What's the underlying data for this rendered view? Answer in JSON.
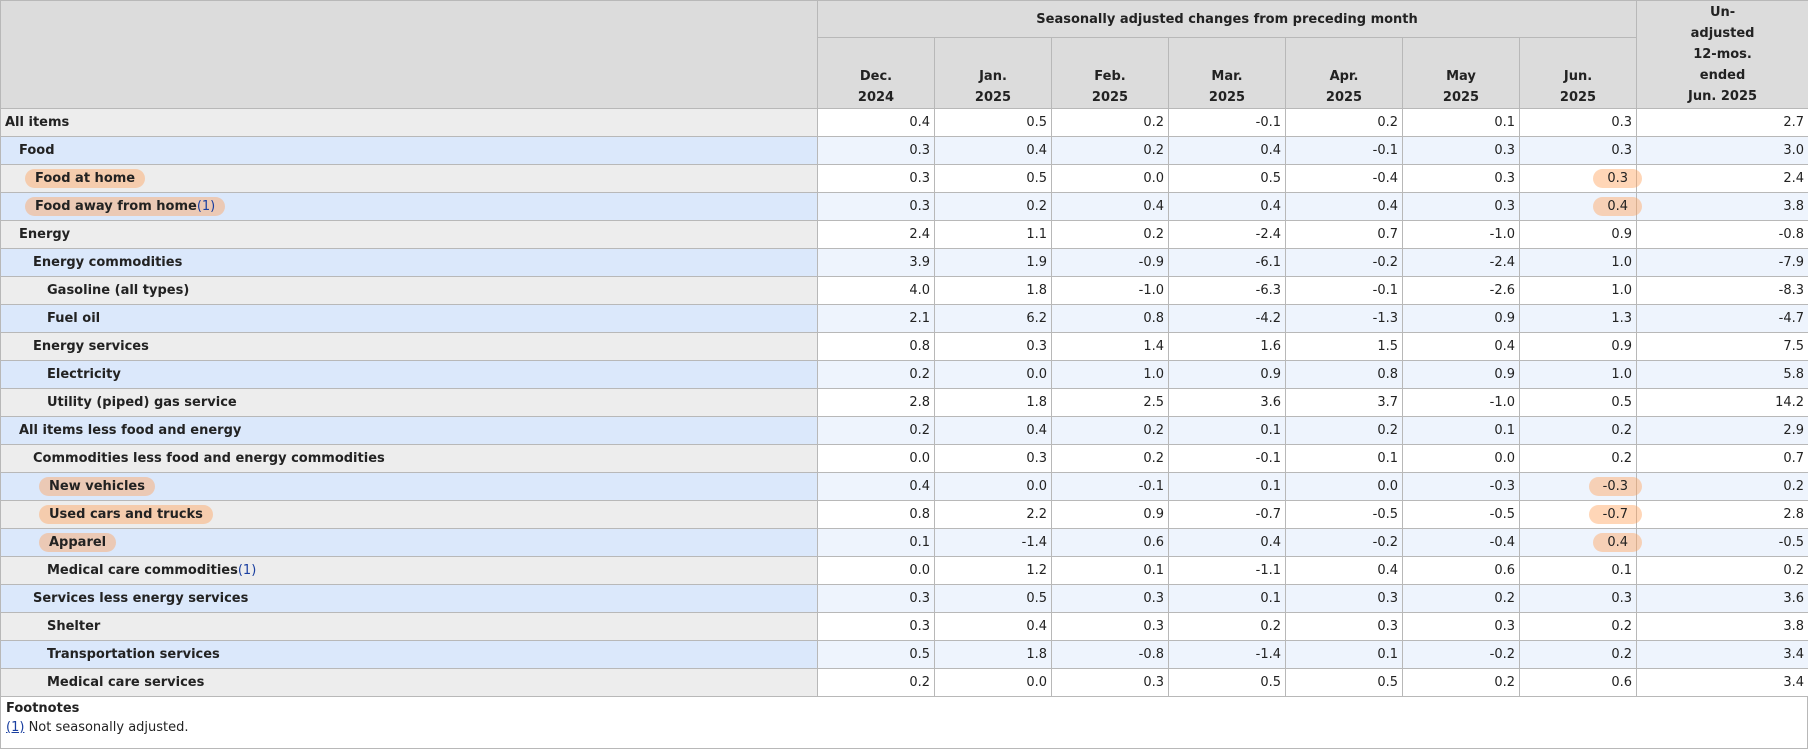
{
  "table": {
    "group_header": "Seasonally adjusted changes from preceding month",
    "columns": [
      [
        "Dec.",
        "2024"
      ],
      [
        "Jan.",
        "2025"
      ],
      [
        "Feb.",
        "2025"
      ],
      [
        "Mar.",
        "2025"
      ],
      [
        "Apr.",
        "2025"
      ],
      [
        "May",
        "2025"
      ],
      [
        "Jun.",
        "2025"
      ]
    ],
    "last_column": [
      "Un-",
      "adjusted",
      "12-mos.",
      "ended",
      "Jun. 2025"
    ],
    "rows": [
      {
        "label": "All items",
        "level": 0,
        "values": [
          "0.4",
          "0.5",
          "0.2",
          "-0.1",
          "0.2",
          "0.1",
          "0.3",
          "2.7"
        ]
      },
      {
        "label": "Food",
        "level": 1,
        "values": [
          "0.3",
          "0.4",
          "0.2",
          "0.4",
          "-0.1",
          "0.3",
          "0.3",
          "3.0"
        ]
      },
      {
        "label": "Food at home",
        "level": 2,
        "values": [
          "0.3",
          "0.5",
          "0.0",
          "0.5",
          "-0.4",
          "0.3",
          "0.3",
          "2.4"
        ]
      },
      {
        "label": "Food away from home",
        "note": "(1)",
        "level": 2,
        "values": [
          "0.3",
          "0.2",
          "0.4",
          "0.4",
          "0.4",
          "0.3",
          "0.4",
          "3.8"
        ]
      },
      {
        "label": "Energy",
        "level": 1,
        "values": [
          "2.4",
          "1.1",
          "0.2",
          "-2.4",
          "0.7",
          "-1.0",
          "0.9",
          "-0.8"
        ]
      },
      {
        "label": "Energy commodities",
        "level": 2,
        "values": [
          "3.9",
          "1.9",
          "-0.9",
          "-6.1",
          "-0.2",
          "-2.4",
          "1.0",
          "-7.9"
        ]
      },
      {
        "label": "Gasoline (all types)",
        "level": 3,
        "values": [
          "4.0",
          "1.8",
          "-1.0",
          "-6.3",
          "-0.1",
          "-2.6",
          "1.0",
          "-8.3"
        ]
      },
      {
        "label": "Fuel oil",
        "level": 3,
        "values": [
          "2.1",
          "6.2",
          "0.8",
          "-4.2",
          "-1.3",
          "0.9",
          "1.3",
          "-4.7"
        ]
      },
      {
        "label": "Energy services",
        "level": 2,
        "values": [
          "0.8",
          "0.3",
          "1.4",
          "1.6",
          "1.5",
          "0.4",
          "0.9",
          "7.5"
        ]
      },
      {
        "label": "Electricity",
        "level": 3,
        "values": [
          "0.2",
          "0.0",
          "1.0",
          "0.9",
          "0.8",
          "0.9",
          "1.0",
          "5.8"
        ]
      },
      {
        "label": "Utility (piped) gas service",
        "level": 3,
        "values": [
          "2.8",
          "1.8",
          "2.5",
          "3.6",
          "3.7",
          "-1.0",
          "0.5",
          "14.2"
        ]
      },
      {
        "label": "All items less food and energy",
        "level": 1,
        "values": [
          "0.2",
          "0.4",
          "0.2",
          "0.1",
          "0.2",
          "0.1",
          "0.2",
          "2.9"
        ]
      },
      {
        "label": "Commodities less food and energy commodities",
        "level": 2,
        "values": [
          "0.0",
          "0.3",
          "0.2",
          "-0.1",
          "0.1",
          "0.0",
          "0.2",
          "0.7"
        ]
      },
      {
        "label": "New vehicles",
        "level": 3,
        "values": [
          "0.4",
          "0.0",
          "-0.1",
          "0.1",
          "0.0",
          "-0.3",
          "-0.3",
          "0.2"
        ]
      },
      {
        "label": "Used cars and trucks",
        "level": 3,
        "values": [
          "0.8",
          "2.2",
          "0.9",
          "-0.7",
          "-0.5",
          "-0.5",
          "-0.7",
          "2.8"
        ]
      },
      {
        "label": "Apparel",
        "level": 3,
        "values": [
          "0.1",
          "-1.4",
          "0.6",
          "0.4",
          "-0.2",
          "-0.4",
          "0.4",
          "-0.5"
        ]
      },
      {
        "label": "Medical care commodities",
        "note": "(1)",
        "level": 3,
        "values": [
          "0.0",
          "1.2",
          "0.1",
          "-1.1",
          "0.4",
          "0.6",
          "0.1",
          "0.2"
        ]
      },
      {
        "label": "Services less energy services",
        "level": 2,
        "values": [
          "0.3",
          "0.5",
          "0.3",
          "0.1",
          "0.3",
          "0.2",
          "0.3",
          "3.6"
        ]
      },
      {
        "label": "Shelter",
        "level": 3,
        "values": [
          "0.3",
          "0.4",
          "0.3",
          "0.2",
          "0.3",
          "0.3",
          "0.2",
          "3.8"
        ]
      },
      {
        "label": "Transportation services",
        "level": 3,
        "values": [
          "0.5",
          "1.8",
          "-0.8",
          "-1.4",
          "0.1",
          "-0.2",
          "0.2",
          "3.4"
        ]
      },
      {
        "label": "Medical care services",
        "level": 3,
        "values": [
          "0.2",
          "0.0",
          "0.3",
          "0.5",
          "0.5",
          "0.2",
          "0.6",
          "3.4"
        ]
      }
    ]
  },
  "footnotes": {
    "title": "Footnotes",
    "items": [
      {
        "marker": "(1)",
        "text": "Not seasonally adjusted."
      }
    ]
  }
}
